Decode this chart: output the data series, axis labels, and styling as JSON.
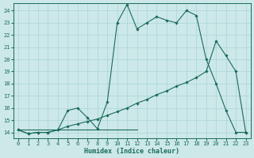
{
  "xlabel": "Humidex (Indice chaleur)",
  "bg_color": "#cce8e8",
  "line_color": "#1a6b5a",
  "grid_color": "#aad4d4",
  "xlim": [
    -0.5,
    23.5
  ],
  "ylim": [
    13.5,
    24.6
  ],
  "xticks": [
    0,
    1,
    2,
    3,
    4,
    5,
    6,
    7,
    8,
    9,
    10,
    11,
    12,
    13,
    14,
    15,
    16,
    17,
    18,
    19,
    20,
    21,
    22,
    23
  ],
  "yticks": [
    14,
    15,
    16,
    17,
    18,
    19,
    20,
    21,
    22,
    23,
    24
  ],
  "line1_x": [
    0,
    1,
    2,
    3,
    4,
    5,
    6,
    7,
    8,
    9,
    10,
    11,
    12,
    13,
    14,
    15,
    16,
    17,
    18,
    19,
    20,
    21,
    22,
    23
  ],
  "line1_y": [
    14.2,
    13.9,
    14.0,
    14.0,
    14.2,
    15.8,
    16.0,
    15.2,
    14.3,
    16.5,
    23.0,
    24.5,
    22.5,
    23.0,
    23.5,
    23.2,
    23.0,
    24.0,
    23.6,
    20.0,
    18.0,
    15.8,
    14.0,
    14.0
  ],
  "line2_x": [
    0,
    1,
    2,
    3,
    4,
    5,
    6,
    7,
    8,
    9,
    10,
    11,
    12,
    13,
    14,
    15,
    16,
    17,
    18,
    19,
    20,
    21,
    22,
    23
  ],
  "line2_y": [
    14.2,
    13.9,
    14.0,
    14.0,
    14.2,
    14.5,
    14.7,
    14.9,
    15.1,
    15.4,
    15.7,
    16.0,
    16.4,
    16.7,
    17.1,
    17.4,
    17.8,
    18.1,
    18.5,
    19.0,
    21.5,
    20.3,
    19.0,
    14.0
  ],
  "line3_x": [
    0,
    12
  ],
  "line3_y": [
    14.2,
    14.2
  ]
}
